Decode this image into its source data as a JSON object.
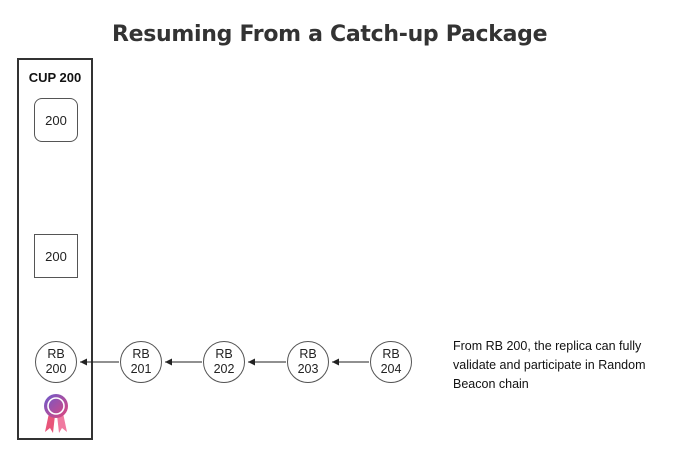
{
  "title": "Resuming From a Catch-up Package",
  "cup": {
    "label": "CUP 200",
    "box_top": "200",
    "box_bottom": "200"
  },
  "chain": [
    {
      "line1": "RB",
      "line2": "200"
    },
    {
      "line1": "RB",
      "line2": "201"
    },
    {
      "line1": "RB",
      "line2": "202"
    },
    {
      "line1": "RB",
      "line2": "203"
    },
    {
      "line1": "RB",
      "line2": "204"
    }
  ],
  "note": "From RB 200, the replica can fully validate and participate in Random Beacon chain",
  "icons": {
    "award": "award-ribbon-icon"
  },
  "colors": {
    "award_gradient_start": "#6a5acd",
    "award_gradient_end": "#e0457b"
  }
}
